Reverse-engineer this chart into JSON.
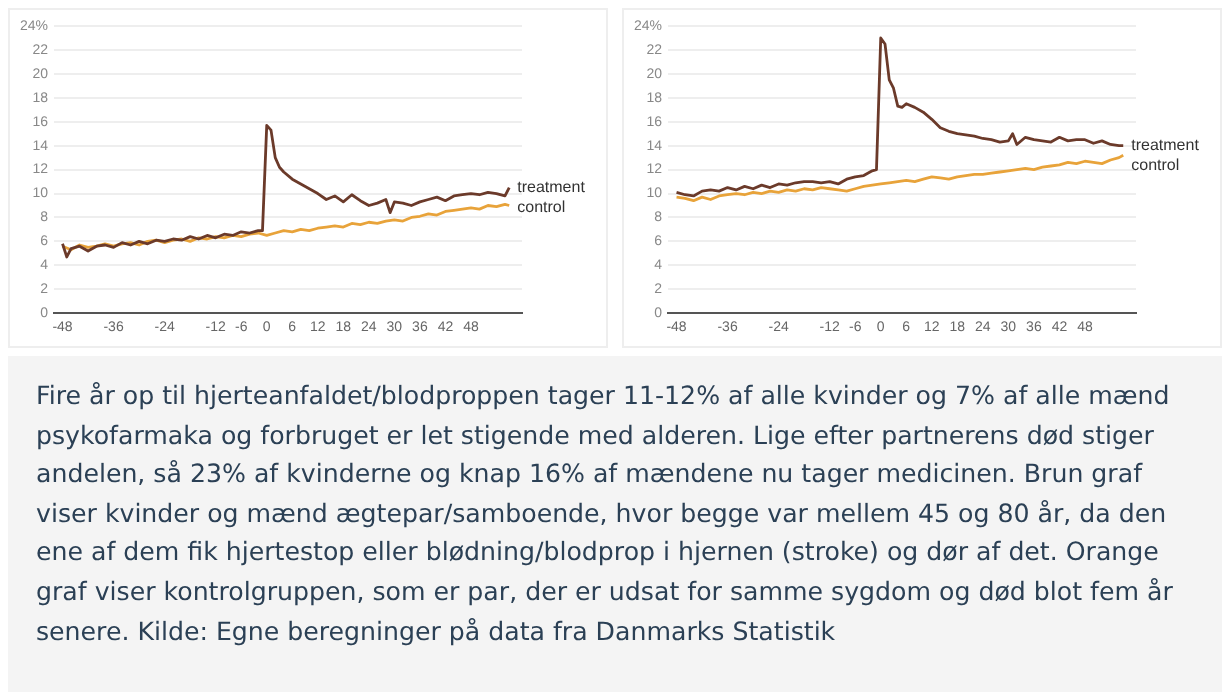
{
  "chart_data": [
    {
      "type": "line",
      "xlim": [
        -50,
        60
      ],
      "ylim": [
        0,
        24
      ],
      "xticks": [
        -48,
        -36,
        -24,
        -12,
        -6,
        0,
        6,
        12,
        18,
        24,
        30,
        36,
        42,
        48
      ],
      "yticks": [
        0,
        2,
        4,
        6,
        8,
        10,
        12,
        14,
        16,
        18,
        20,
        22,
        {
          "value": 24,
          "label": "24%"
        }
      ],
      "grid": "y",
      "legend": false,
      "marker": "none",
      "line_style": "solid",
      "series": [
        {
          "name": "treatment",
          "color": "#6b3a2a",
          "x": [
            -48,
            -47,
            -46,
            -44,
            -42,
            -40,
            -38,
            -36,
            -34,
            -32,
            -30,
            -28,
            -26,
            -24,
            -22,
            -20,
            -18,
            -16,
            -14,
            -12,
            -10,
            -8,
            -6,
            -4,
            -2,
            -1,
            0,
            1,
            2,
            3,
            4,
            6,
            8,
            10,
            12,
            14,
            16,
            18,
            20,
            22,
            24,
            26,
            28,
            29,
            30,
            32,
            34,
            36,
            38,
            40,
            42,
            44,
            46,
            48,
            50,
            52,
            54,
            56,
            57
          ],
          "values": [
            5.8,
            4.7,
            5.4,
            5.6,
            5.2,
            5.6,
            5.7,
            5.5,
            5.9,
            5.7,
            6.0,
            5.8,
            6.1,
            6.0,
            6.2,
            6.1,
            6.4,
            6.2,
            6.5,
            6.3,
            6.6,
            6.5,
            6.8,
            6.7,
            6.9,
            6.9,
            15.7,
            15.3,
            13.0,
            12.2,
            11.8,
            11.2,
            10.8,
            10.4,
            10.0,
            9.5,
            9.8,
            9.3,
            9.9,
            9.4,
            9.0,
            9.2,
            9.5,
            8.4,
            9.3,
            9.2,
            9.0,
            9.3,
            9.5,
            9.7,
            9.4,
            9.8,
            9.9,
            10.0,
            9.9,
            10.1,
            10.0,
            9.8,
            10.5
          ]
        },
        {
          "name": "control",
          "color": "#e8a33a",
          "x": [
            -48,
            -46,
            -44,
            -42,
            -40,
            -38,
            -36,
            -34,
            -32,
            -30,
            -28,
            -26,
            -24,
            -22,
            -20,
            -18,
            -16,
            -14,
            -12,
            -10,
            -8,
            -6,
            -4,
            -2,
            0,
            2,
            4,
            6,
            8,
            10,
            12,
            14,
            16,
            18,
            20,
            22,
            24,
            26,
            28,
            30,
            32,
            34,
            36,
            38,
            40,
            42,
            44,
            46,
            48,
            50,
            52,
            54,
            56,
            57
          ],
          "values": [
            5.6,
            5.3,
            5.7,
            5.5,
            5.6,
            5.8,
            5.6,
            5.8,
            5.9,
            5.7,
            6.0,
            6.1,
            5.9,
            6.1,
            6.2,
            6.0,
            6.3,
            6.2,
            6.4,
            6.3,
            6.5,
            6.4,
            6.6,
            6.7,
            6.5,
            6.7,
            6.9,
            6.8,
            7.0,
            6.9,
            7.1,
            7.2,
            7.3,
            7.2,
            7.5,
            7.4,
            7.6,
            7.5,
            7.7,
            7.8,
            7.7,
            8.0,
            8.1,
            8.3,
            8.2,
            8.5,
            8.6,
            8.7,
            8.8,
            8.7,
            9.0,
            8.9,
            9.1,
            9.0
          ]
        }
      ]
    },
    {
      "type": "line",
      "xlim": [
        -50,
        60
      ],
      "ylim": [
        0,
        24
      ],
      "xticks": [
        -48,
        -36,
        -24,
        -12,
        -6,
        0,
        6,
        12,
        18,
        24,
        30,
        36,
        42,
        48
      ],
      "yticks": [
        0,
        2,
        4,
        6,
        8,
        10,
        12,
        14,
        16,
        18,
        20,
        22,
        {
          "value": 24,
          "label": "24%"
        }
      ],
      "grid": "y",
      "legend": false,
      "marker": "none",
      "line_style": "solid",
      "series": [
        {
          "name": "treatment",
          "color": "#6b3a2a",
          "x": [
            -48,
            -46,
            -44,
            -42,
            -40,
            -38,
            -36,
            -34,
            -32,
            -30,
            -28,
            -26,
            -24,
            -22,
            -20,
            -18,
            -16,
            -14,
            -12,
            -10,
            -8,
            -6,
            -4,
            -2,
            -1,
            0,
            1,
            2,
            3,
            4,
            5,
            6,
            8,
            10,
            12,
            14,
            16,
            18,
            20,
            22,
            24,
            26,
            28,
            30,
            31,
            32,
            34,
            36,
            38,
            40,
            42,
            44,
            46,
            48,
            50,
            52,
            54,
            56,
            57
          ],
          "values": [
            10.1,
            9.9,
            9.8,
            10.2,
            10.3,
            10.2,
            10.5,
            10.3,
            10.6,
            10.4,
            10.7,
            10.5,
            10.8,
            10.7,
            10.9,
            11.0,
            11.0,
            10.9,
            11.0,
            10.8,
            11.2,
            11.4,
            11.5,
            11.9,
            12.0,
            23.0,
            22.5,
            19.5,
            18.8,
            17.3,
            17.2,
            17.5,
            17.2,
            16.8,
            16.2,
            15.5,
            15.2,
            15.0,
            14.9,
            14.8,
            14.6,
            14.5,
            14.3,
            14.4,
            15.0,
            14.1,
            14.7,
            14.5,
            14.4,
            14.3,
            14.7,
            14.4,
            14.5,
            14.5,
            14.2,
            14.4,
            14.1,
            14.0,
            14.0
          ]
        },
        {
          "name": "control",
          "color": "#e8a33a",
          "x": [
            -48,
            -46,
            -44,
            -42,
            -40,
            -38,
            -36,
            -34,
            -32,
            -30,
            -28,
            -26,
            -24,
            -22,
            -20,
            -18,
            -16,
            -14,
            -12,
            -10,
            -8,
            -6,
            -4,
            -2,
            0,
            2,
            4,
            6,
            8,
            10,
            12,
            14,
            16,
            18,
            20,
            22,
            24,
            26,
            28,
            30,
            32,
            34,
            36,
            38,
            40,
            42,
            44,
            46,
            48,
            50,
            52,
            54,
            56,
            57
          ],
          "values": [
            9.7,
            9.6,
            9.4,
            9.7,
            9.5,
            9.8,
            9.9,
            10.0,
            9.9,
            10.1,
            10.0,
            10.2,
            10.1,
            10.3,
            10.2,
            10.4,
            10.3,
            10.5,
            10.4,
            10.3,
            10.2,
            10.4,
            10.6,
            10.7,
            10.8,
            10.9,
            11.0,
            11.1,
            11.0,
            11.2,
            11.4,
            11.3,
            11.2,
            11.4,
            11.5,
            11.6,
            11.6,
            11.7,
            11.8,
            11.9,
            12.0,
            12.1,
            12.0,
            12.2,
            12.3,
            12.4,
            12.6,
            12.5,
            12.7,
            12.6,
            12.5,
            12.8,
            13.0,
            13.2
          ]
        }
      ]
    },
    {
      "type": "other",
      "annotations": [
        "Fire år op til hjerteanfaldet/blodproppen tager 11-12% af alle kvinder og 7% af alle mænd psykofarmaka og forbruget er let stigende med alderen. Lige efter partnerens død stiger andelen, så 23% af kvinderne og knap 16% af mændene nu tager medicinen. Brun graf viser kvinder og mænd ægtepar/samboende, hvor begge var mellem 45 og 80 år, da den ene af dem fik hjertestop eller blødning/blodprop i hjernen (stroke) og dør af det. Orange graf viser kontrolgruppen, som er par, der er udsat for samme sygdom og død blot fem år senere. Kilde: Egne beregninger på data fra Danmarks Statistik"
      ]
    }
  ]
}
